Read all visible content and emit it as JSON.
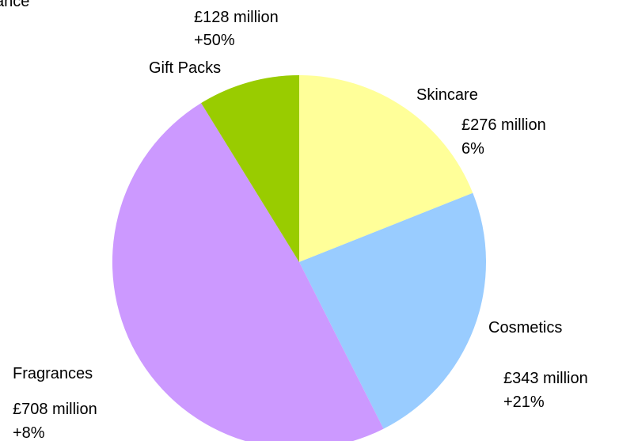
{
  "chart_data": {
    "type": "pie",
    "title": "ance",
    "slices": [
      {
        "name": "Skincare",
        "value": 276,
        "value_label": "£276 million",
        "change_label": "6%",
        "color": "#ffff99"
      },
      {
        "name": "Cosmetics",
        "value": 343,
        "value_label": "£343 million",
        "change_label": "+21%",
        "color": "#99ccff"
      },
      {
        "name": "Fragrances",
        "value": 708,
        "value_label": "£708 million",
        "change_label": "+8%",
        "color": "#cc99ff"
      },
      {
        "name": "Gift Packs",
        "value": 128,
        "value_label": "£128 million",
        "change_label": "+50%",
        "color": "#99cc00"
      }
    ],
    "legend": "none"
  }
}
